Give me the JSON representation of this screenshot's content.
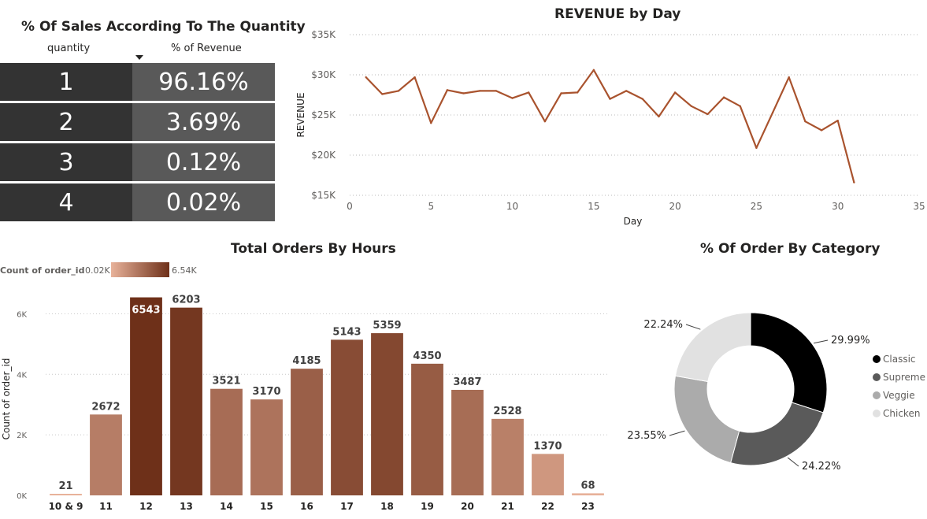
{
  "qty_table": {
    "title": "% Of Sales According To The Quantity",
    "col_quantity": "quantity",
    "col_revenue": "% of Revenue",
    "rows": [
      {
        "quantity": "1",
        "revenue": "96.16%"
      },
      {
        "quantity": "2",
        "revenue": "3.69%"
      },
      {
        "quantity": "3",
        "revenue": "0.12%"
      },
      {
        "quantity": "4",
        "revenue": "0.02%"
      }
    ]
  },
  "chart_data": [
    {
      "type": "line",
      "title": "REVENUE by Day",
      "xlabel": "Day",
      "ylabel": "REVENUE",
      "xlim": [
        0,
        35
      ],
      "ylim": [
        15000,
        35000
      ],
      "x_ticks": [
        "0",
        "5",
        "10",
        "15",
        "20",
        "25",
        "30",
        "35"
      ],
      "y_ticks": [
        "$15K",
        "$20K",
        "$25K",
        "$30K",
        "$35K"
      ],
      "color": "#A9532E",
      "series": [
        {
          "x": [
            1,
            2,
            3,
            4,
            5,
            6,
            7,
            8,
            9,
            10,
            11,
            12,
            13,
            14,
            15,
            16,
            17,
            18,
            19,
            20,
            21,
            22,
            23,
            24,
            25,
            26,
            27,
            28,
            29,
            30,
            31
          ],
          "values": [
            29700,
            27600,
            28000,
            29700,
            24000,
            28100,
            27700,
            28000,
            28000,
            27100,
            27800,
            24200,
            27700,
            27800,
            30600,
            27000,
            28000,
            27000,
            24800,
            27800,
            26100,
            25100,
            27200,
            26100,
            20900,
            25300,
            29700,
            24200,
            23100,
            24300,
            16600
          ]
        }
      ]
    },
    {
      "type": "bar",
      "title": "Total Orders By Hours",
      "xlabel": "",
      "ylabel": "Count of order_id",
      "ylim": [
        0,
        7000
      ],
      "y_ticks": [
        "0K",
        "2K",
        "4K",
        "6K"
      ],
      "legend": {
        "label": "Count of order_id",
        "min_label": "0.02K",
        "max_label": "6.54K",
        "min_color": "#E8B29A",
        "max_color": "#6E3019"
      },
      "categories": [
        "10 & 9",
        "11",
        "12",
        "13",
        "14",
        "15",
        "16",
        "17",
        "18",
        "19",
        "20",
        "21",
        "22",
        "23"
      ],
      "values": [
        21,
        2672,
        6543,
        6203,
        3521,
        3170,
        4185,
        5143,
        5359,
        4350,
        3487,
        2528,
        1370,
        68
      ],
      "labels": [
        "21",
        "2672",
        "6543",
        "6203",
        "3521",
        "3170",
        "4185",
        "5143",
        "5359",
        "4350",
        "3487",
        "2528",
        "1370",
        "68"
      ]
    },
    {
      "type": "pie",
      "title": "% Of Order By Category",
      "legend_position": "right",
      "slices": [
        {
          "name": "Classic",
          "value": 29.99,
          "label": "29.99%",
          "color": "#000000"
        },
        {
          "name": "Supreme",
          "value": 24.22,
          "label": "24.22%",
          "color": "#5A5A5A"
        },
        {
          "name": "Veggie",
          "value": 23.55,
          "label": "23.55%",
          "color": "#ABABAB"
        },
        {
          "name": "Chicken",
          "value": 22.24,
          "label": "22.24%",
          "color": "#E1E1E1"
        }
      ]
    }
  ]
}
